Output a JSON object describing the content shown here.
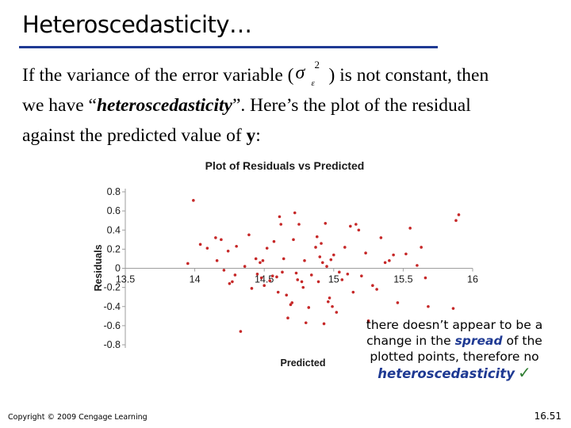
{
  "title": "Heteroscedasticity…",
  "body": {
    "line1_a": "If the variance of the error variable (",
    "sigma": {
      "symbol": "σ",
      "superscript": "2",
      "subscript": "ε"
    },
    "line1_b": ") is not constant, then",
    "line2_a": "we have “",
    "line2_em": "heteroscedasticity",
    "line2_b": "”. Here’s the plot of the residual",
    "line3_a": "against the predicted value of ",
    "line3_bold": "y",
    "line3_b": ":"
  },
  "annotation": {
    "line1": "there doesn’t appear to be a",
    "line2_a": "change in the ",
    "line2_em": "spread",
    "line2_b": " of the",
    "line3": "plotted points, therefore no",
    "keyword": "heteroscedasticity",
    "check": "✓"
  },
  "footer": {
    "copyright": "Copyright © 2009 Cengage Learning",
    "page": "16.51"
  },
  "colors": {
    "rule": "#1f3a93",
    "points": "#c62828",
    "axis": "#9e9e9e",
    "check": "#2e7d32"
  },
  "chart_data": {
    "type": "scatter",
    "title": "Plot of Residuals vs Predicted",
    "xlabel": "Predicted",
    "ylabel": "Residuals",
    "xlim": [
      13.5,
      16
    ],
    "ylim": [
      -0.8,
      0.8
    ],
    "x_ticks": [
      13.5,
      14,
      14.5,
      15,
      15.5,
      16
    ],
    "x_tick_labels": [
      "13.5",
      "14",
      "14.5",
      "15",
      "15.5",
      "16"
    ],
    "y_ticks": [
      0.8,
      0.6,
      0.4,
      0.2,
      0,
      -0.2,
      -0.4,
      -0.6,
      -0.8
    ],
    "y_tick_labels": [
      "0.8",
      "0.6",
      "0.4",
      "0.2",
      "0",
      "-0.2",
      "-0.4",
      "-0.6",
      "-0.8"
    ],
    "grid": false,
    "points": [
      [
        13.95,
        0.05
      ],
      [
        13.99,
        0.71
      ],
      [
        14.04,
        0.25
      ],
      [
        14.09,
        0.21
      ],
      [
        14.15,
        0.32
      ],
      [
        14.16,
        0.08
      ],
      [
        14.19,
        0.3
      ],
      [
        14.21,
        -0.02
      ],
      [
        14.24,
        0.18
      ],
      [
        14.25,
        -0.16
      ],
      [
        14.27,
        -0.14
      ],
      [
        14.29,
        -0.07
      ],
      [
        14.3,
        0.23
      ],
      [
        14.33,
        -0.66
      ],
      [
        14.36,
        0.02
      ],
      [
        14.39,
        0.35
      ],
      [
        14.41,
        -0.21
      ],
      [
        14.44,
        0.1
      ],
      [
        14.45,
        -0.06
      ],
      [
        14.47,
        0.06
      ],
      [
        14.48,
        -0.1
      ],
      [
        14.49,
        0.08
      ],
      [
        14.5,
        -0.18
      ],
      [
        14.52,
        0.21
      ],
      [
        14.54,
        -0.13
      ],
      [
        14.56,
        -0.08
      ],
      [
        14.57,
        0.28
      ],
      [
        14.59,
        -0.09
      ],
      [
        14.6,
        -0.25
      ],
      [
        14.61,
        0.54
      ],
      [
        14.62,
        0.46
      ],
      [
        14.63,
        -0.04
      ],
      [
        14.64,
        0.1
      ],
      [
        14.66,
        -0.28
      ],
      [
        14.67,
        -0.52
      ],
      [
        14.69,
        -0.38
      ],
      [
        14.7,
        -0.36
      ],
      [
        14.71,
        0.3
      ],
      [
        14.72,
        0.58
      ],
      [
        14.73,
        -0.05
      ],
      [
        14.74,
        -0.12
      ],
      [
        14.75,
        0.46
      ],
      [
        14.77,
        -0.14
      ],
      [
        14.78,
        -0.2
      ],
      [
        14.79,
        0.08
      ],
      [
        14.8,
        -0.57
      ],
      [
        14.82,
        -0.41
      ],
      [
        14.84,
        -0.07
      ],
      [
        14.87,
        0.22
      ],
      [
        14.88,
        0.33
      ],
      [
        14.89,
        -0.14
      ],
      [
        14.9,
        0.12
      ],
      [
        14.91,
        0.26
      ],
      [
        14.92,
        0.06
      ],
      [
        14.93,
        -0.58
      ],
      [
        14.94,
        0.47
      ],
      [
        14.95,
        0.02
      ],
      [
        14.96,
        -0.35
      ],
      [
        14.97,
        -0.31
      ],
      [
        14.98,
        0.09
      ],
      [
        14.99,
        -0.4
      ],
      [
        15.0,
        0.14
      ],
      [
        15.02,
        -0.46
      ],
      [
        15.04,
        -0.04
      ],
      [
        15.06,
        -0.12
      ],
      [
        15.08,
        0.22
      ],
      [
        15.1,
        -0.06
      ],
      [
        15.12,
        0.44
      ],
      [
        15.14,
        -0.25
      ],
      [
        15.16,
        0.46
      ],
      [
        15.18,
        0.4
      ],
      [
        15.2,
        -0.08
      ],
      [
        15.23,
        0.16
      ],
      [
        15.25,
        -0.55
      ],
      [
        15.28,
        -0.18
      ],
      [
        15.31,
        -0.22
      ],
      [
        15.34,
        0.32
      ],
      [
        15.37,
        0.06
      ],
      [
        15.4,
        0.08
      ],
      [
        15.43,
        0.14
      ],
      [
        15.46,
        -0.36
      ],
      [
        15.52,
        0.15
      ],
      [
        15.55,
        0.42
      ],
      [
        15.6,
        0.03
      ],
      [
        15.63,
        0.22
      ],
      [
        15.66,
        -0.1
      ],
      [
        15.68,
        -0.4
      ],
      [
        15.86,
        -0.42
      ],
      [
        15.88,
        0.5
      ],
      [
        15.9,
        0.56
      ]
    ]
  }
}
